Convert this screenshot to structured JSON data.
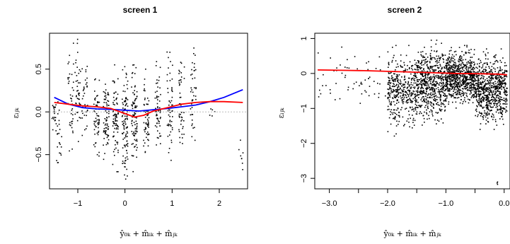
{
  "chart_data": [
    {
      "type": "scatter",
      "title": "screen 1",
      "xlabel": "ŷ₀ₖ + m̂ᵢₖ + m̂ⱼₖ",
      "ylabel": "εᵢⱼₖ",
      "xlim": [
        -1.6,
        2.6
      ],
      "ylim": [
        -0.9,
        0.92
      ],
      "xticks": [
        -1,
        0,
        1,
        2
      ],
      "yticks": [
        -0.5,
        0.0,
        0.5
      ],
      "xtick_labels": [
        "−1",
        "0",
        "1",
        "2"
      ],
      "ytick_labels": [
        "−0.5",
        "0.0",
        "0.5"
      ],
      "grid": false,
      "reference_line_y": 0.0,
      "point_color": "#000000",
      "scatter_clusters": [
        {
          "x": -1.5,
          "y_min": -0.3,
          "y_max": 0.2,
          "n": 20
        },
        {
          "x": -1.4,
          "y_min": -0.75,
          "y_max": 0.15,
          "n": 22
        },
        {
          "x": -1.15,
          "y_min": -0.5,
          "y_max": 0.85,
          "n": 40
        },
        {
          "x": -1.0,
          "y_min": -0.45,
          "y_max": 0.88,
          "n": 40
        },
        {
          "x": -0.85,
          "y_min": -0.35,
          "y_max": 0.7,
          "n": 35
        },
        {
          "x": -0.6,
          "y_min": -0.55,
          "y_max": 0.45,
          "n": 60
        },
        {
          "x": -0.4,
          "y_min": -0.6,
          "y_max": 0.5,
          "n": 70
        },
        {
          "x": -0.2,
          "y_min": -0.7,
          "y_max": 0.55,
          "n": 80
        },
        {
          "x": 0.0,
          "y_min": -0.88,
          "y_max": 0.6,
          "n": 110
        },
        {
          "x": 0.2,
          "y_min": -0.8,
          "y_max": 0.55,
          "n": 90
        },
        {
          "x": 0.45,
          "y_min": -0.6,
          "y_max": 0.5,
          "n": 60
        },
        {
          "x": 0.7,
          "y_min": -0.55,
          "y_max": 0.65,
          "n": 55
        },
        {
          "x": 0.95,
          "y_min": -0.6,
          "y_max": 0.7,
          "n": 55
        },
        {
          "x": 1.2,
          "y_min": -0.5,
          "y_max": 0.75,
          "n": 45
        },
        {
          "x": 1.45,
          "y_min": -0.45,
          "y_max": 0.85,
          "n": 40
        },
        {
          "x": 1.85,
          "y_min": -0.05,
          "y_max": 0.1,
          "n": 5
        },
        {
          "x": 2.45,
          "y_min": -0.8,
          "y_max": -0.2,
          "n": 8
        }
      ],
      "series": [
        {
          "color": "#0000ff",
          "x": [
            -1.5,
            -1.2,
            -0.9,
            -0.6,
            -0.3,
            0.0,
            0.3,
            0.6,
            0.9,
            1.2,
            1.5,
            1.8,
            2.1,
            2.5
          ],
          "y": [
            0.17,
            0.09,
            0.05,
            0.035,
            0.03,
            0.02,
            0.01,
            0.025,
            0.04,
            0.06,
            0.08,
            0.12,
            0.17,
            0.26
          ]
        },
        {
          "color": "#ff0000",
          "x": [
            -1.5,
            -1.2,
            -0.9,
            -0.6,
            -0.3,
            0.0,
            0.2,
            0.4,
            0.6,
            0.9,
            1.2,
            1.5,
            1.8,
            2.1,
            2.5
          ],
          "y": [
            0.11,
            0.09,
            0.07,
            0.06,
            0.04,
            -0.02,
            -0.06,
            -0.04,
            0.01,
            0.05,
            0.09,
            0.11,
            0.12,
            0.12,
            0.11
          ]
        }
      ]
    },
    {
      "type": "scatter",
      "title": "screen 2",
      "xlabel": "ŷ₀ₖ + m̂ᵢₖ + m̂ⱼₖ",
      "ylabel": "εᵢⱼₖ",
      "xlim": [
        -3.25,
        0.1
      ],
      "ylim": [
        -3.3,
        1.15
      ],
      "xticks": [
        -3.0,
        -2.5,
        -2.0,
        -1.5,
        -1.0,
        -0.5,
        0.0
      ],
      "yticks": [
        -3,
        -2,
        -1,
        0,
        1
      ],
      "xtick_labels": [
        "−3.0",
        "",
        "−2.0",
        "",
        "−1.0",
        "",
        "0.0"
      ],
      "ytick_labels": [
        "−3",
        "−2",
        "−1",
        "0",
        "1"
      ],
      "grid": false,
      "point_color": "#000000",
      "scatter_clusters": [
        {
          "x_min": -3.2,
          "x_max": -2.0,
          "y_min": -1.1,
          "y_max": 0.9,
          "n": 60
        },
        {
          "x_min": -2.0,
          "x_max": -1.5,
          "y_min": -1.8,
          "y_max": 0.8,
          "n": 400
        },
        {
          "x_min": -1.5,
          "x_max": -1.0,
          "y_min": -1.5,
          "y_max": 0.95,
          "n": 600
        },
        {
          "x_min": -1.0,
          "x_max": -0.5,
          "y_min": -1.0,
          "y_max": 0.8,
          "n": 700
        },
        {
          "x_min": -0.5,
          "x_max": 0.05,
          "y_min": -1.6,
          "y_max": 0.7,
          "n": 700
        },
        {
          "x_min": -0.15,
          "x_max": 0.0,
          "y_min": -3.2,
          "y_max": -3.1,
          "n": 3
        }
      ],
      "series": [
        {
          "color": "#ff0000",
          "x": [
            -3.2,
            -2.8,
            -2.4,
            -2.0,
            -1.6,
            -1.2,
            -0.8,
            -0.4,
            -0.1,
            0.05
          ],
          "y": [
            0.1,
            0.09,
            0.08,
            0.06,
            0.04,
            0.02,
            0.0,
            -0.01,
            -0.02,
            -0.04
          ]
        }
      ]
    }
  ]
}
